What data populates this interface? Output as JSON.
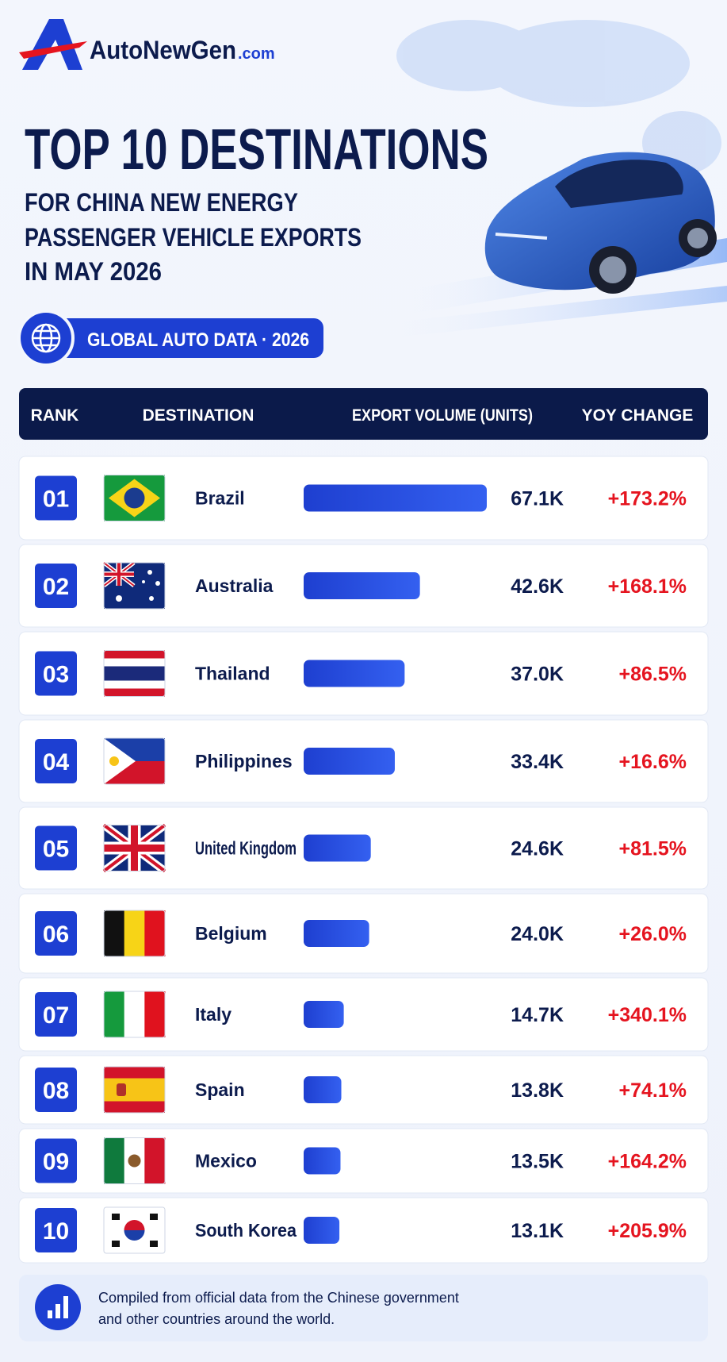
{
  "header": {
    "brand": "AutoNewGen",
    "brand_suffix": ".com",
    "title": "TOP 10 DESTINATIONS",
    "subtitle_lines": [
      "FOR CHINA NEW ENERGY",
      "PASSENGER VEHICLE EXPORTS",
      "IN MAY 2026"
    ],
    "badge": "GLOBAL AUTO DATA · 2026"
  },
  "table": {
    "columns": [
      "RANK",
      "DESTINATION",
      "EXPORT VOLUME (UNITS)",
      "YOY CHANGE"
    ],
    "rows": [
      {
        "rank": "01",
        "country": "Brazil",
        "volume": 67100,
        "volume_label": "67.1K",
        "yoy": "+173.2%"
      },
      {
        "rank": "02",
        "country": "Australia",
        "volume": 42600,
        "volume_label": "42.6K",
        "yoy": "+168.1%"
      },
      {
        "rank": "03",
        "country": "Thailand",
        "volume": 37000,
        "volume_label": "37.0K",
        "yoy": "+86.5%"
      },
      {
        "rank": "04",
        "country": "Philippines",
        "volume": 33400,
        "volume_label": "33.4K",
        "yoy": "+16.6%"
      },
      {
        "rank": "05",
        "country": "United Kingdom",
        "volume": 24600,
        "volume_label": "24.6K",
        "yoy": "+81.5%"
      },
      {
        "rank": "06",
        "country": "Belgium",
        "volume": 24000,
        "volume_label": "24.0K",
        "yoy": "+26.0%"
      },
      {
        "rank": "07",
        "country": "Italy",
        "volume": 14700,
        "volume_label": "14.7K",
        "yoy": "+340.1%"
      },
      {
        "rank": "08",
        "country": "Spain",
        "volume": 13800,
        "volume_label": "13.8K",
        "yoy": "+74.1%"
      },
      {
        "rank": "09",
        "country": "Mexico",
        "volume": 13500,
        "volume_label": "13.5K",
        "yoy": "+164.2%"
      },
      {
        "rank": "10",
        "country": "South Korea",
        "volume": 13100,
        "volume_label": "13.1K",
        "yoy": "+205.9%"
      }
    ]
  },
  "footer": {
    "lines": [
      "Compiled from official data from the Chinese government",
      "and other countries around the world."
    ]
  }
}
